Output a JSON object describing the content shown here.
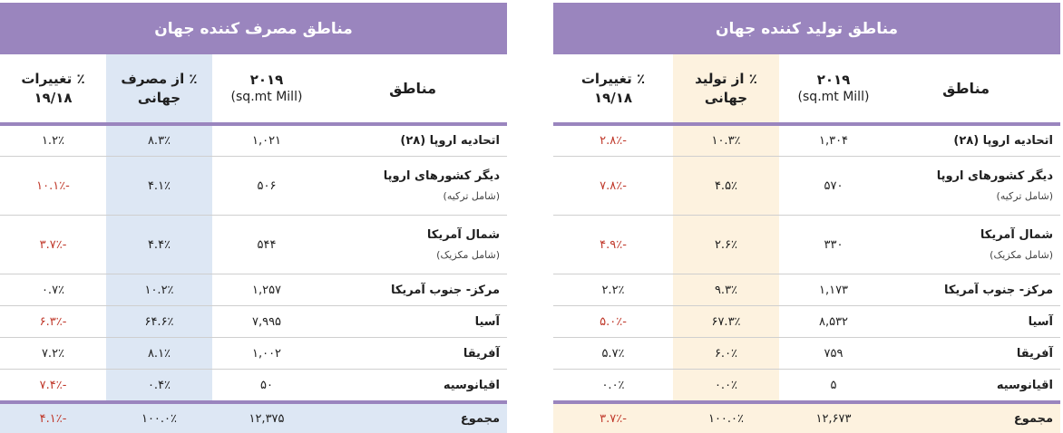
{
  "producers": {
    "title": "مناطق تولید کننده جهان",
    "headers": {
      "region": "مناطق",
      "year": "۲۰۱۹",
      "unit": "(sq.mt Mill)",
      "share_l1": "٪ از تولید",
      "share_l2": "جهانی",
      "change_l1": "٪ تغییرات",
      "change_l2": "۱۹/۱۸"
    },
    "rows": [
      {
        "region": "اتحادیه اروپا (۲۸)",
        "note": "",
        "value": "۱,۳۰۴",
        "share": "۱۰.۳٪",
        "change": "-۲.۸٪"
      },
      {
        "region": "دیگر کشورهای اروپا",
        "note": "(شامل ترکیه)",
        "value": "۵۷۰",
        "share": "۴.۵٪",
        "change": "-۷.۸٪"
      },
      {
        "region": "شمال آمریکا",
        "note": "(شامل مکزیک)",
        "value": "۳۳۰",
        "share": "۲.۶٪",
        "change": "-۴.۹٪"
      },
      {
        "region": "مرکز- جنوب آمریکا",
        "note": "",
        "value": "۱,۱۷۳",
        "share": "۹.۳٪",
        "change": "۲.۲٪"
      },
      {
        "region": "آسیا",
        "note": "",
        "value": "۸,۵۳۲",
        "share": "۶۷.۳٪",
        "change": "-۵.۰٪"
      },
      {
        "region": "آفریقا",
        "note": "",
        "value": "۷۵۹",
        "share": "۶.۰٪",
        "change": "۵.۷٪"
      },
      {
        "region": "اقیانوسیه",
        "note": "",
        "value": "۵",
        "share": "۰.۰٪",
        "change": "۰.۰٪"
      }
    ],
    "total": {
      "region": "مجموع",
      "value": "۱۲,۶۷۳",
      "share": "۱۰۰.۰٪",
      "change": "-۳.۷٪"
    }
  },
  "consumers": {
    "title": "مناطق مصرف کننده جهان",
    "headers": {
      "region": "مناطق",
      "year": "۲۰۱۹",
      "unit": "(sq.mt Mill)",
      "share_l1": "٪ از مصرف",
      "share_l2": "جهانی",
      "change_l1": "٪ تغییرات",
      "change_l2": "۱۹/۱۸"
    },
    "rows": [
      {
        "region": "اتحادیه اروپا (۲۸)",
        "note": "",
        "value": "۱,۰۲۱",
        "share": "۸.۳٪",
        "change": "۱.۲٪"
      },
      {
        "region": "دیگر کشورهای اروپا",
        "note": "(شامل ترکیه)",
        "value": "۵۰۶",
        "share": "۴.۱٪",
        "change": "-۱۰.۱٪"
      },
      {
        "region": "شمال آمریکا",
        "note": "(شامل مکزیک)",
        "value": "۵۴۴",
        "share": "۴.۴٪",
        "change": "-۳.۷٪"
      },
      {
        "region": "مرکز- جنوب آمریکا",
        "note": "",
        "value": "۱,۲۵۷",
        "share": "۱۰.۲٪",
        "change": "۰.۷٪"
      },
      {
        "region": "آسیا",
        "note": "",
        "value": "۷,۹۹۵",
        "share": "۶۴.۶٪",
        "change": "-۶.۳٪"
      },
      {
        "region": "آفریقا",
        "note": "",
        "value": "۱,۰۰۲",
        "share": "۸.۱٪",
        "change": "۷.۲٪"
      },
      {
        "region": "اقیانوسیه",
        "note": "",
        "value": "۵۰",
        "share": "۰.۴٪",
        "change": "-۷.۴٪"
      }
    ],
    "total": {
      "region": "مجموع",
      "value": "۱۲,۳۷۵",
      "share": "۱۰۰.۰٪",
      "change": "-۴.۱٪"
    }
  },
  "colors": {
    "banner": "#9a85be",
    "producer_highlight": "#fdf2df",
    "consumer_highlight": "#dde7f4",
    "negative": "#c0392b"
  }
}
